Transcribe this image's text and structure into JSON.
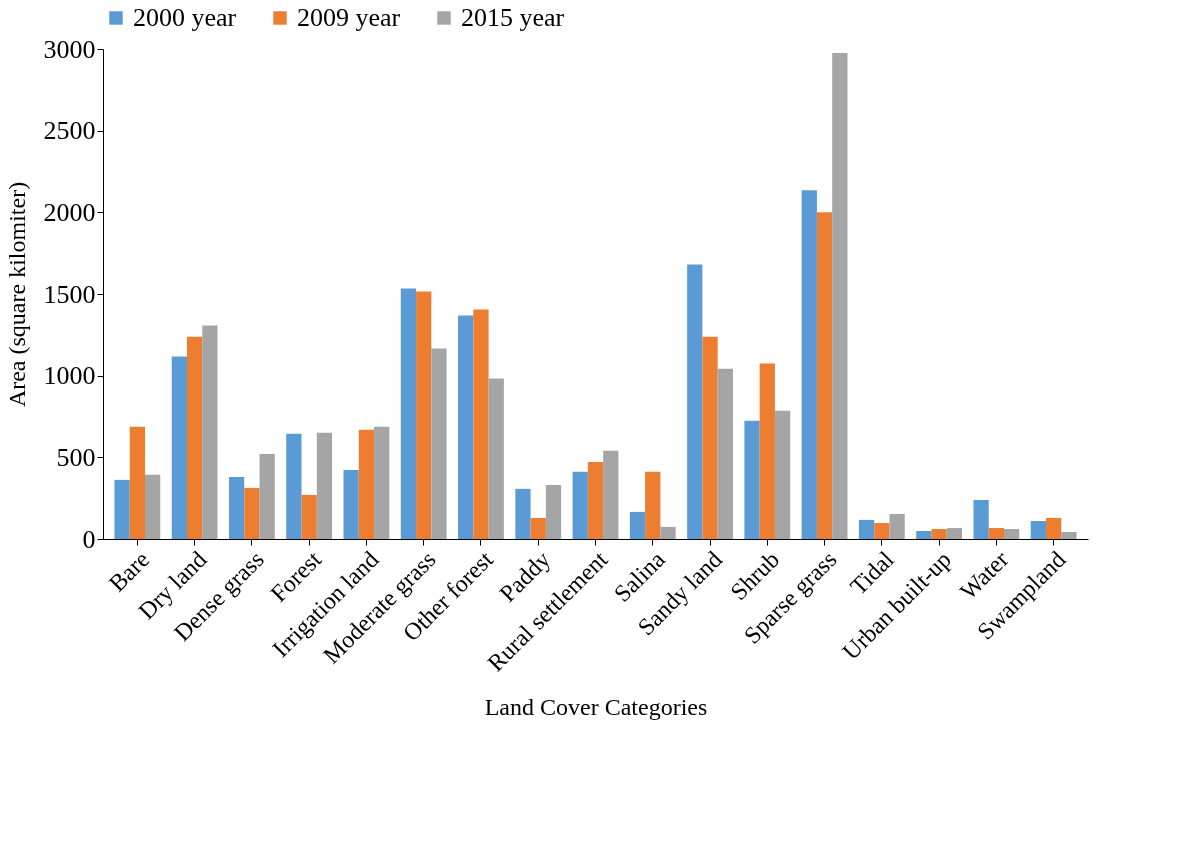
{
  "chart_data": {
    "type": "bar",
    "xlabel": "Land Cover Categories",
    "ylabel": "Area (square kilomiter)",
    "categories": [
      "Bare",
      "Dry land",
      "Dense grass",
      "Forest",
      "Irrigation land",
      "Moderate grass",
      "Other forest",
      "Paddy",
      "Rural settlement",
      "Salina",
      "Sandy land",
      "Shrub",
      "Sparse grass",
      "Tidal",
      "Urban built-up",
      "Water",
      "Swampland"
    ],
    "series": [
      {
        "name": "2000 year",
        "color": "#5b9bd5",
        "values": [
          362,
          1117,
          380,
          644,
          423,
          1534,
          1368,
          307,
          411,
          166,
          1681,
          724,
          2135,
          117,
          49,
          239,
          110
        ]
      },
      {
        "name": "2009 year",
        "color": "#ed7d31",
        "values": [
          687,
          1239,
          313,
          270,
          669,
          1515,
          1405,
          129,
          472,
          411,
          1239,
          1074,
          2000,
          98,
          61,
          67,
          129
        ]
      },
      {
        "name": "2015 year",
        "color": "#a5a5a5",
        "values": [
          393,
          1307,
          521,
          650,
          687,
          1166,
          982,
          331,
          540,
          74,
          1043,
          785,
          2975,
          153,
          67,
          61,
          43
        ]
      }
    ],
    "ylim": [
      0,
      3000
    ],
    "yticks": [
      0,
      500,
      1000,
      1500,
      2000,
      2500,
      3000
    ],
    "grid": false,
    "legend": "top"
  }
}
